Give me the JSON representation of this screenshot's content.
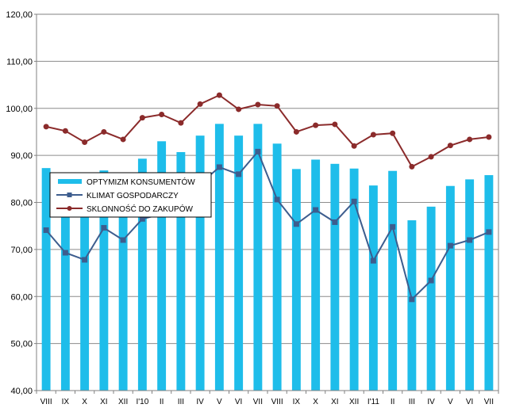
{
  "chart_data": {
    "type": "bar+line",
    "title": "",
    "xlabel": "",
    "ylabel": "",
    "ylim": [
      40,
      120
    ],
    "yticks": [
      "40,00",
      "50,00",
      "60,00",
      "70,00",
      "80,00",
      "90,00",
      "100,00",
      "110,00",
      "120,00"
    ],
    "ytick_values": [
      40,
      50,
      60,
      70,
      80,
      90,
      100,
      110,
      120
    ],
    "categories": [
      "VIII",
      "IX",
      "X",
      "XI",
      "XII",
      "I'10",
      "II",
      "III",
      "IV",
      "V",
      "VI",
      "VII",
      "VIII",
      "IX",
      "X",
      "XI",
      "XII",
      "I'11",
      "II",
      "III",
      "IV",
      "V",
      "VI",
      "VII"
    ],
    "grid": true,
    "legend_position": "middle-left",
    "series": [
      {
        "name": "OPTYMIZM KONSUMENTÓW",
        "kind": "bar",
        "color": "#1ebdea",
        "values": [
          87.3,
          78.5,
          77.5,
          86.8,
          82.5,
          89.3,
          93.0,
          90.7,
          94.2,
          96.7,
          94.2,
          96.7,
          92.5,
          87.1,
          89.1,
          88.2,
          87.2,
          83.6,
          86.7,
          76.2,
          79.1,
          83.5,
          84.9,
          85.8
        ]
      },
      {
        "name": "KLIMAT GOSPODARCZY",
        "kind": "line",
        "color": "#3d5d8e",
        "marker": "square",
        "values": [
          74.1,
          69.3,
          67.8,
          74.6,
          72.0,
          76.5,
          77.5,
          80.5,
          84.0,
          87.5,
          86.0,
          90.8,
          80.6,
          75.4,
          78.4,
          75.8,
          80.2,
          67.6,
          74.8,
          59.4,
          63.4,
          70.8,
          72.0,
          73.7
        ]
      },
      {
        "name": "SKLONNOŚĆ DO ZAKUPÓW",
        "kind": "line",
        "color": "#8b2b2b",
        "marker": "circle",
        "values": [
          96.1,
          95.2,
          92.8,
          95.0,
          93.4,
          98.0,
          98.7,
          96.9,
          100.9,
          102.8,
          99.8,
          100.8,
          100.5,
          95.0,
          96.4,
          96.6,
          92.0,
          94.4,
          94.7,
          87.6,
          89.7,
          92.1,
          93.4,
          93.9
        ]
      }
    ]
  }
}
